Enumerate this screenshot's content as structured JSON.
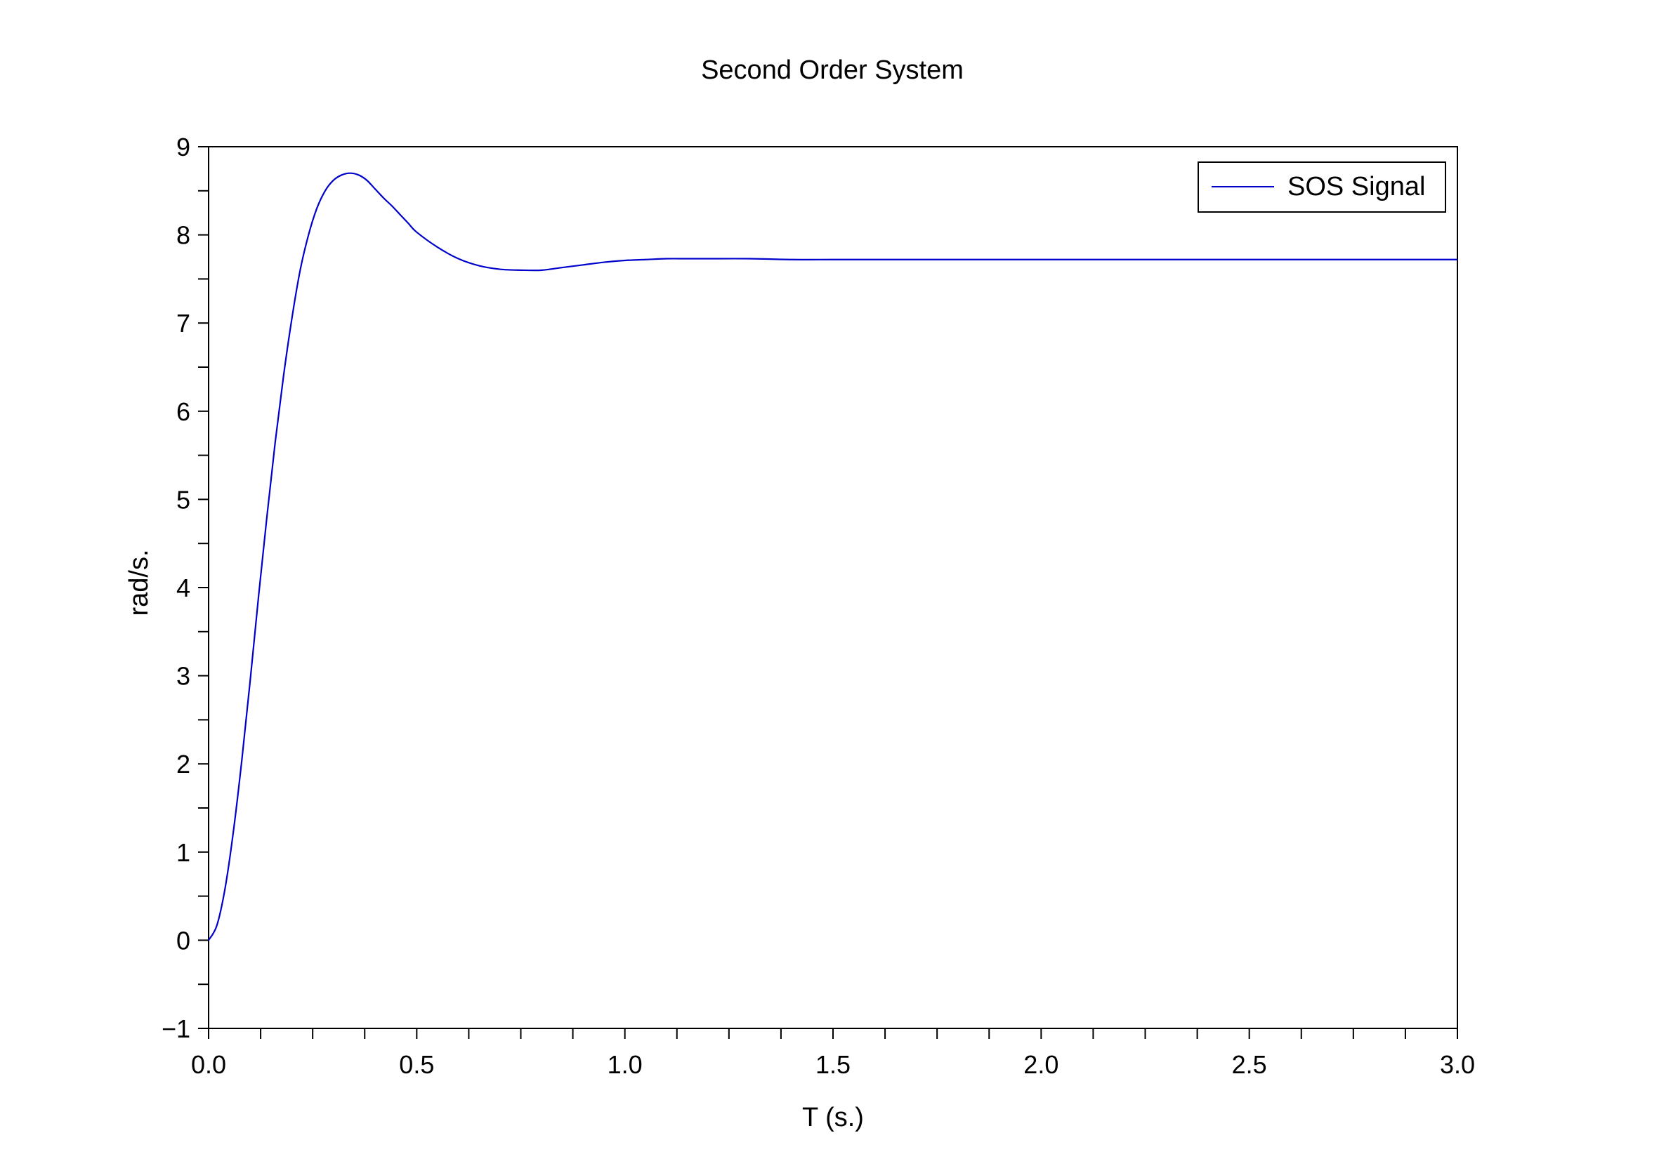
{
  "chart_data": {
    "type": "line",
    "title": "Second Order System",
    "xlabel": "T (s.)",
    "ylabel": "rad/s.",
    "xlim": [
      0,
      3
    ],
    "ylim": [
      -1,
      9
    ],
    "grid": false,
    "legend_placement": "top-right",
    "x_ticks": [
      "0.0",
      "0.5",
      "1.0",
      "1.5",
      "2.0",
      "2.5",
      "3.0"
    ],
    "y_ticks": [
      "−1",
      "0",
      "1",
      "2",
      "3",
      "4",
      "5",
      "6",
      "7",
      "8",
      "9"
    ],
    "series": [
      {
        "name": "SOS Signal",
        "color": "#0000cc",
        "x": [
          0,
          0.02,
          0.04,
          0.06,
          0.08,
          0.1,
          0.12,
          0.14,
          0.16,
          0.18,
          0.2,
          0.22,
          0.24,
          0.26,
          0.28,
          0.3,
          0.32,
          0.34,
          0.36,
          0.38,
          0.4,
          0.42,
          0.44,
          0.46,
          0.48,
          0.5,
          0.55,
          0.6,
          0.65,
          0.7,
          0.75,
          0.8,
          0.85,
          0.9,
          0.95,
          1.0,
          1.05,
          1.1,
          1.15,
          1.2,
          1.3,
          1.4,
          1.5,
          1.6,
          1.8,
          2.0,
          2.2,
          2.5,
          2.8,
          3.0
        ],
        "y": [
          0,
          0.17,
          0.6,
          1.25,
          2.05,
          2.95,
          3.9,
          4.8,
          5.65,
          6.4,
          7.05,
          7.6,
          8.0,
          8.3,
          8.5,
          8.62,
          8.68,
          8.7,
          8.68,
          8.62,
          8.52,
          8.42,
          8.33,
          8.23,
          8.13,
          8.03,
          7.86,
          7.73,
          7.65,
          7.61,
          7.6,
          7.6,
          7.63,
          7.66,
          7.69,
          7.71,
          7.72,
          7.73,
          7.73,
          7.73,
          7.73,
          7.72,
          7.72,
          7.72,
          7.72,
          7.72,
          7.72,
          7.72,
          7.72,
          7.72
        ]
      }
    ]
  }
}
